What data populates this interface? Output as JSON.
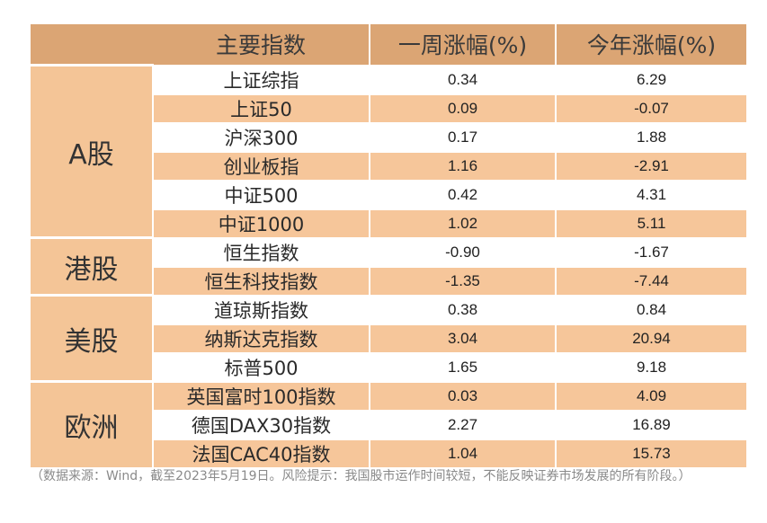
{
  "header": {
    "col_name": "主要指数",
    "col_week": "一周涨幅(%)",
    "col_ytd": "今年涨幅(%)"
  },
  "groups": [
    {
      "region": "A股",
      "rows": [
        {
          "name": "上证综指",
          "week": "0.34",
          "ytd": "6.29"
        },
        {
          "name": "上证50",
          "week": "0.09",
          "ytd": "-0.07"
        },
        {
          "name": "沪深300",
          "week": "0.17",
          "ytd": "1.88"
        },
        {
          "name": "创业板指",
          "week": "1.16",
          "ytd": "-2.91"
        },
        {
          "name": "中证500",
          "week": "0.42",
          "ytd": "4.31"
        },
        {
          "name": "中证1000",
          "week": "1.02",
          "ytd": "5.11"
        }
      ]
    },
    {
      "region": "港股",
      "rows": [
        {
          "name": "恒生指数",
          "week": "-0.90",
          "ytd": "-1.67"
        },
        {
          "name": "恒生科技指数",
          "week": "-1.35",
          "ytd": "-7.44"
        }
      ]
    },
    {
      "region": "美股",
      "rows": [
        {
          "name": "道琼斯指数",
          "week": "0.38",
          "ytd": "0.84"
        },
        {
          "name": "纳斯达克指数",
          "week": "3.04",
          "ytd": "20.94"
        },
        {
          "name": "标普500",
          "week": "1.65",
          "ytd": "9.18"
        }
      ]
    },
    {
      "region": "欧洲",
      "rows": [
        {
          "name": "英国富时100指数",
          "week": "0.03",
          "ytd": "4.09"
        },
        {
          "name": "德国DAX30指数",
          "week": "2.27",
          "ytd": "16.89"
        },
        {
          "name": "法国CAC40指数",
          "week": "1.04",
          "ytd": "15.73"
        }
      ]
    }
  ],
  "footnote": "（数据来源：Wind，截至2023年5月19日。风险提示：我国股市运作时间较短，不能反映证券市场发展的所有阶段。）"
}
